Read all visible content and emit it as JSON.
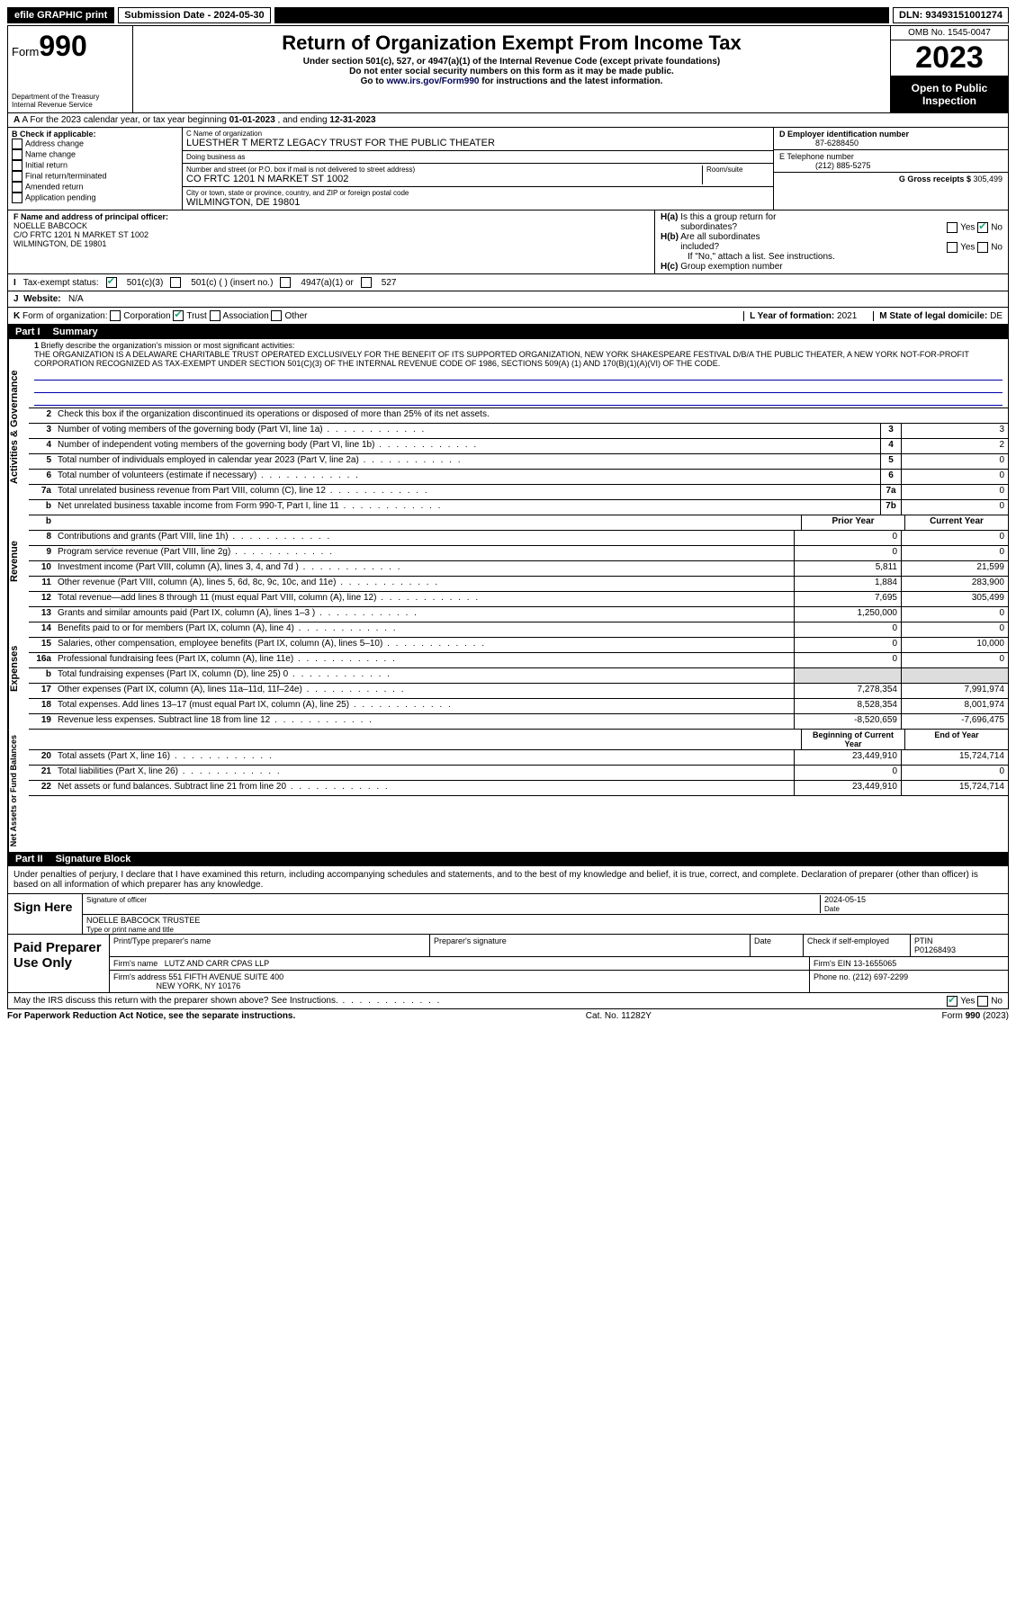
{
  "topbar": {
    "efile": "efile GRAPHIC print",
    "subdate_label": "Submission Date - ",
    "subdate": "2024-05-30",
    "dln_label": "DLN: ",
    "dln": "93493151001274"
  },
  "header": {
    "form_word": "Form",
    "form_num": "990",
    "dept": "Department of the Treasury",
    "irs": "Internal Revenue Service",
    "title": "Return of Organization Exempt From Income Tax",
    "sub1": "Under section 501(c), 527, or 4947(a)(1) of the Internal Revenue Code (except private foundations)",
    "sub2": "Do not enter social security numbers on this form as it may be made public.",
    "sub3": "Go to www.irs.gov/Form990 for instructions and the latest information.",
    "omb": "OMB No. 1545-0047",
    "year": "2023",
    "inspect": "Open to Public Inspection"
  },
  "lineA": {
    "pre": "A For the 2023 calendar year, or tax year beginning ",
    "begin": "01-01-2023",
    "mid": " , and ending ",
    "end": "12-31-2023"
  },
  "colB": {
    "hdr": "B Check if applicable:",
    "items": [
      "Address change",
      "Name change",
      "Initial return",
      "Final return/terminated",
      "Amended return",
      "Application pending"
    ]
  },
  "colC": {
    "name_lab": "C Name of organization",
    "name": "LUESTHER T MERTZ LEGACY TRUST FOR THE PUBLIC THEATER",
    "dba_lab": "Doing business as",
    "dba": "",
    "street_lab": "Number and street (or P.O. box if mail is not delivered to street address)",
    "room_lab": "Room/suite",
    "street": "CO FRTC 1201 N MARKET ST 1002",
    "city_lab": "City or town, state or province, country, and ZIP or foreign postal code",
    "city": "WILMINGTON, DE  19801"
  },
  "colD": {
    "ein_lab": "D Employer identification number",
    "ein": "87-6288450",
    "tel_lab": "E Telephone number",
    "tel": "(212) 885-5275",
    "gross_lab": "G Gross receipts $ ",
    "gross": "305,499"
  },
  "rowF": {
    "lab": "F  Name and address of principal officer:",
    "name": "NOELLE BABCOCK",
    "addr1": "C/O FRTC 1201 N MARKET ST 1002",
    "addr2": "WILMINGTON, DE  19801"
  },
  "rowH": {
    "a": "H(a)  Is this a group return for subordinates?",
    "b": "H(b)  Are all subordinates included?",
    "bnote": "If \"No,\" attach a list. See instructions.",
    "c": "H(c)  Group exemption number",
    "yes": "Yes",
    "no": "No"
  },
  "rowI": {
    "lab": "Tax-exempt status:",
    "o1": "501(c)(3)",
    "o2": "501(c) (  ) (insert no.)",
    "o3": "4947(a)(1) or",
    "o4": "527",
    "letter": "I"
  },
  "rowJ": {
    "letter": "J",
    "lab": "Website:",
    "val": "N/A"
  },
  "rowK": {
    "letter": "K",
    "lab": "Form of organization:",
    "o1": "Corporation",
    "o2": "Trust",
    "o3": "Association",
    "o4": "Other",
    "L": "L Year of formation: ",
    "Lval": "2021",
    "M": "M State of legal domicile: ",
    "Mval": "DE"
  },
  "partI": {
    "pt": "Part I",
    "title": "Summary"
  },
  "mission": {
    "num": "1",
    "lab": "Briefly describe the organization's mission or most significant activities:",
    "text": "THE ORGANIZATION IS A DELAWARE CHARITABLE TRUST OPERATED EXCLUSIVELY FOR THE BENEFIT OF ITS SUPPORTED ORGANIZATION, NEW YORK SHAKESPEARE FESTIVAL D/B/A THE PUBLIC THEATER, A NEW YORK NOT-FOR-PROFIT CORPORATION RECOGNIZED AS TAX-EXEMPT UNDER SECTION 501(C)(3) OF THE INTERNAL REVENUE CODE OF 1986, SECTIONS 509(A) (1) AND 170(B)(1)(A)(VI) OF THE CODE."
  },
  "gov": {
    "side": "Activities & Governance",
    "l2": "Check this box      if the organization discontinued its operations or disposed of more than 25% of its net assets.",
    "rows": [
      {
        "n": "3",
        "d": "Number of voting members of the governing body (Part VI, line 1a)",
        "b": "3",
        "v": "3"
      },
      {
        "n": "4",
        "d": "Number of independent voting members of the governing body (Part VI, line 1b)",
        "b": "4",
        "v": "2"
      },
      {
        "n": "5",
        "d": "Total number of individuals employed in calendar year 2023 (Part V, line 2a)",
        "b": "5",
        "v": "0"
      },
      {
        "n": "6",
        "d": "Total number of volunteers (estimate if necessary)",
        "b": "6",
        "v": "0"
      },
      {
        "n": "7a",
        "d": "Total unrelated business revenue from Part VIII, column (C), line 12",
        "b": "7a",
        "v": "0"
      },
      {
        "n": "b",
        "d": "Net unrelated business taxable income from Form 990-T, Part I, line 11",
        "b": "7b",
        "v": "0"
      }
    ]
  },
  "rev": {
    "side": "Revenue",
    "hdr": {
      "prior": "Prior Year",
      "curr": "Current Year"
    },
    "rows": [
      {
        "n": "8",
        "d": "Contributions and grants (Part VIII, line 1h)",
        "p": "0",
        "c": "0"
      },
      {
        "n": "9",
        "d": "Program service revenue (Part VIII, line 2g)",
        "p": "0",
        "c": "0"
      },
      {
        "n": "10",
        "d": "Investment income (Part VIII, column (A), lines 3, 4, and 7d )",
        "p": "5,811",
        "c": "21,599"
      },
      {
        "n": "11",
        "d": "Other revenue (Part VIII, column (A), lines 5, 6d, 8c, 9c, 10c, and 11e)",
        "p": "1,884",
        "c": "283,900"
      },
      {
        "n": "12",
        "d": "Total revenue—add lines 8 through 11 (must equal Part VIII, column (A), line 12)",
        "p": "7,695",
        "c": "305,499"
      }
    ]
  },
  "exp": {
    "side": "Expenses",
    "rows": [
      {
        "n": "13",
        "d": "Grants and similar amounts paid (Part IX, column (A), lines 1–3 )",
        "p": "1,250,000",
        "c": "0"
      },
      {
        "n": "14",
        "d": "Benefits paid to or for members (Part IX, column (A), line 4)",
        "p": "0",
        "c": "0"
      },
      {
        "n": "15",
        "d": "Salaries, other compensation, employee benefits (Part IX, column (A), lines 5–10)",
        "p": "0",
        "c": "10,000"
      },
      {
        "n": "16a",
        "d": "Professional fundraising fees (Part IX, column (A), line 11e)",
        "p": "0",
        "c": "0"
      },
      {
        "n": "b",
        "d": "Total fundraising expenses (Part IX, column (D), line 25) 0",
        "p": "",
        "c": "",
        "shade": true
      },
      {
        "n": "17",
        "d": "Other expenses (Part IX, column (A), lines 11a–11d, 11f–24e)",
        "p": "7,278,354",
        "c": "7,991,974"
      },
      {
        "n": "18",
        "d": "Total expenses. Add lines 13–17 (must equal Part IX, column (A), line 25)",
        "p": "8,528,354",
        "c": "8,001,974"
      },
      {
        "n": "19",
        "d": "Revenue less expenses. Subtract line 18 from line 12",
        "p": "-8,520,659",
        "c": "-7,696,475"
      }
    ]
  },
  "net": {
    "side": "Net Assets or Fund Balances",
    "hdr": {
      "prior": "Beginning of Current Year",
      "curr": "End of Year"
    },
    "rows": [
      {
        "n": "20",
        "d": "Total assets (Part X, line 16)",
        "p": "23,449,910",
        "c": "15,724,714"
      },
      {
        "n": "21",
        "d": "Total liabilities (Part X, line 26)",
        "p": "0",
        "c": "0"
      },
      {
        "n": "22",
        "d": "Net assets or fund balances. Subtract line 21 from line 20",
        "p": "23,449,910",
        "c": "15,724,714"
      }
    ]
  },
  "partII": {
    "pt": "Part II",
    "title": "Signature Block"
  },
  "sig": {
    "decl": "Under penalties of perjury, I declare that I have examined this return, including accompanying schedules and statements, and to the best of my knowledge and belief, it is true, correct, and complete. Declaration of preparer (other than officer) is based on all information of which preparer has any knowledge.",
    "sign": "Sign Here",
    "sigof": "Signature of officer",
    "date": "Date",
    "dateval": "2024-05-15",
    "name": "NOELLE BABCOCK  TRUSTEE",
    "typelab": "Type or print name and title"
  },
  "prep": {
    "lab": "Paid Preparer Use Only",
    "r1": {
      "a": "Print/Type preparer's name",
      "b": "Preparer's signature",
      "c": "Date",
      "d": "Check        if self-employed",
      "e": "PTIN",
      "eval": "P01268493"
    },
    "r2": {
      "a": "Firm's name",
      "aval": "LUTZ AND CARR CPAS LLP",
      "b": "Firm's EIN ",
      "bval": "13-1655065"
    },
    "r3": {
      "a": "Firm's address",
      "aval": "551 FIFTH AVENUE SUITE 400",
      "a2": "NEW YORK, NY  10176",
      "b": "Phone no. ",
      "bval": "(212) 697-2299"
    }
  },
  "discuss": {
    "q": "May the IRS discuss this return with the preparer shown above? See Instructions.",
    "yes": "Yes",
    "no": "No"
  },
  "footer": {
    "l": "For Paperwork Reduction Act Notice, see the separate instructions.",
    "c": "Cat. No. 11282Y",
    "r": "Form 990 (2023)"
  }
}
